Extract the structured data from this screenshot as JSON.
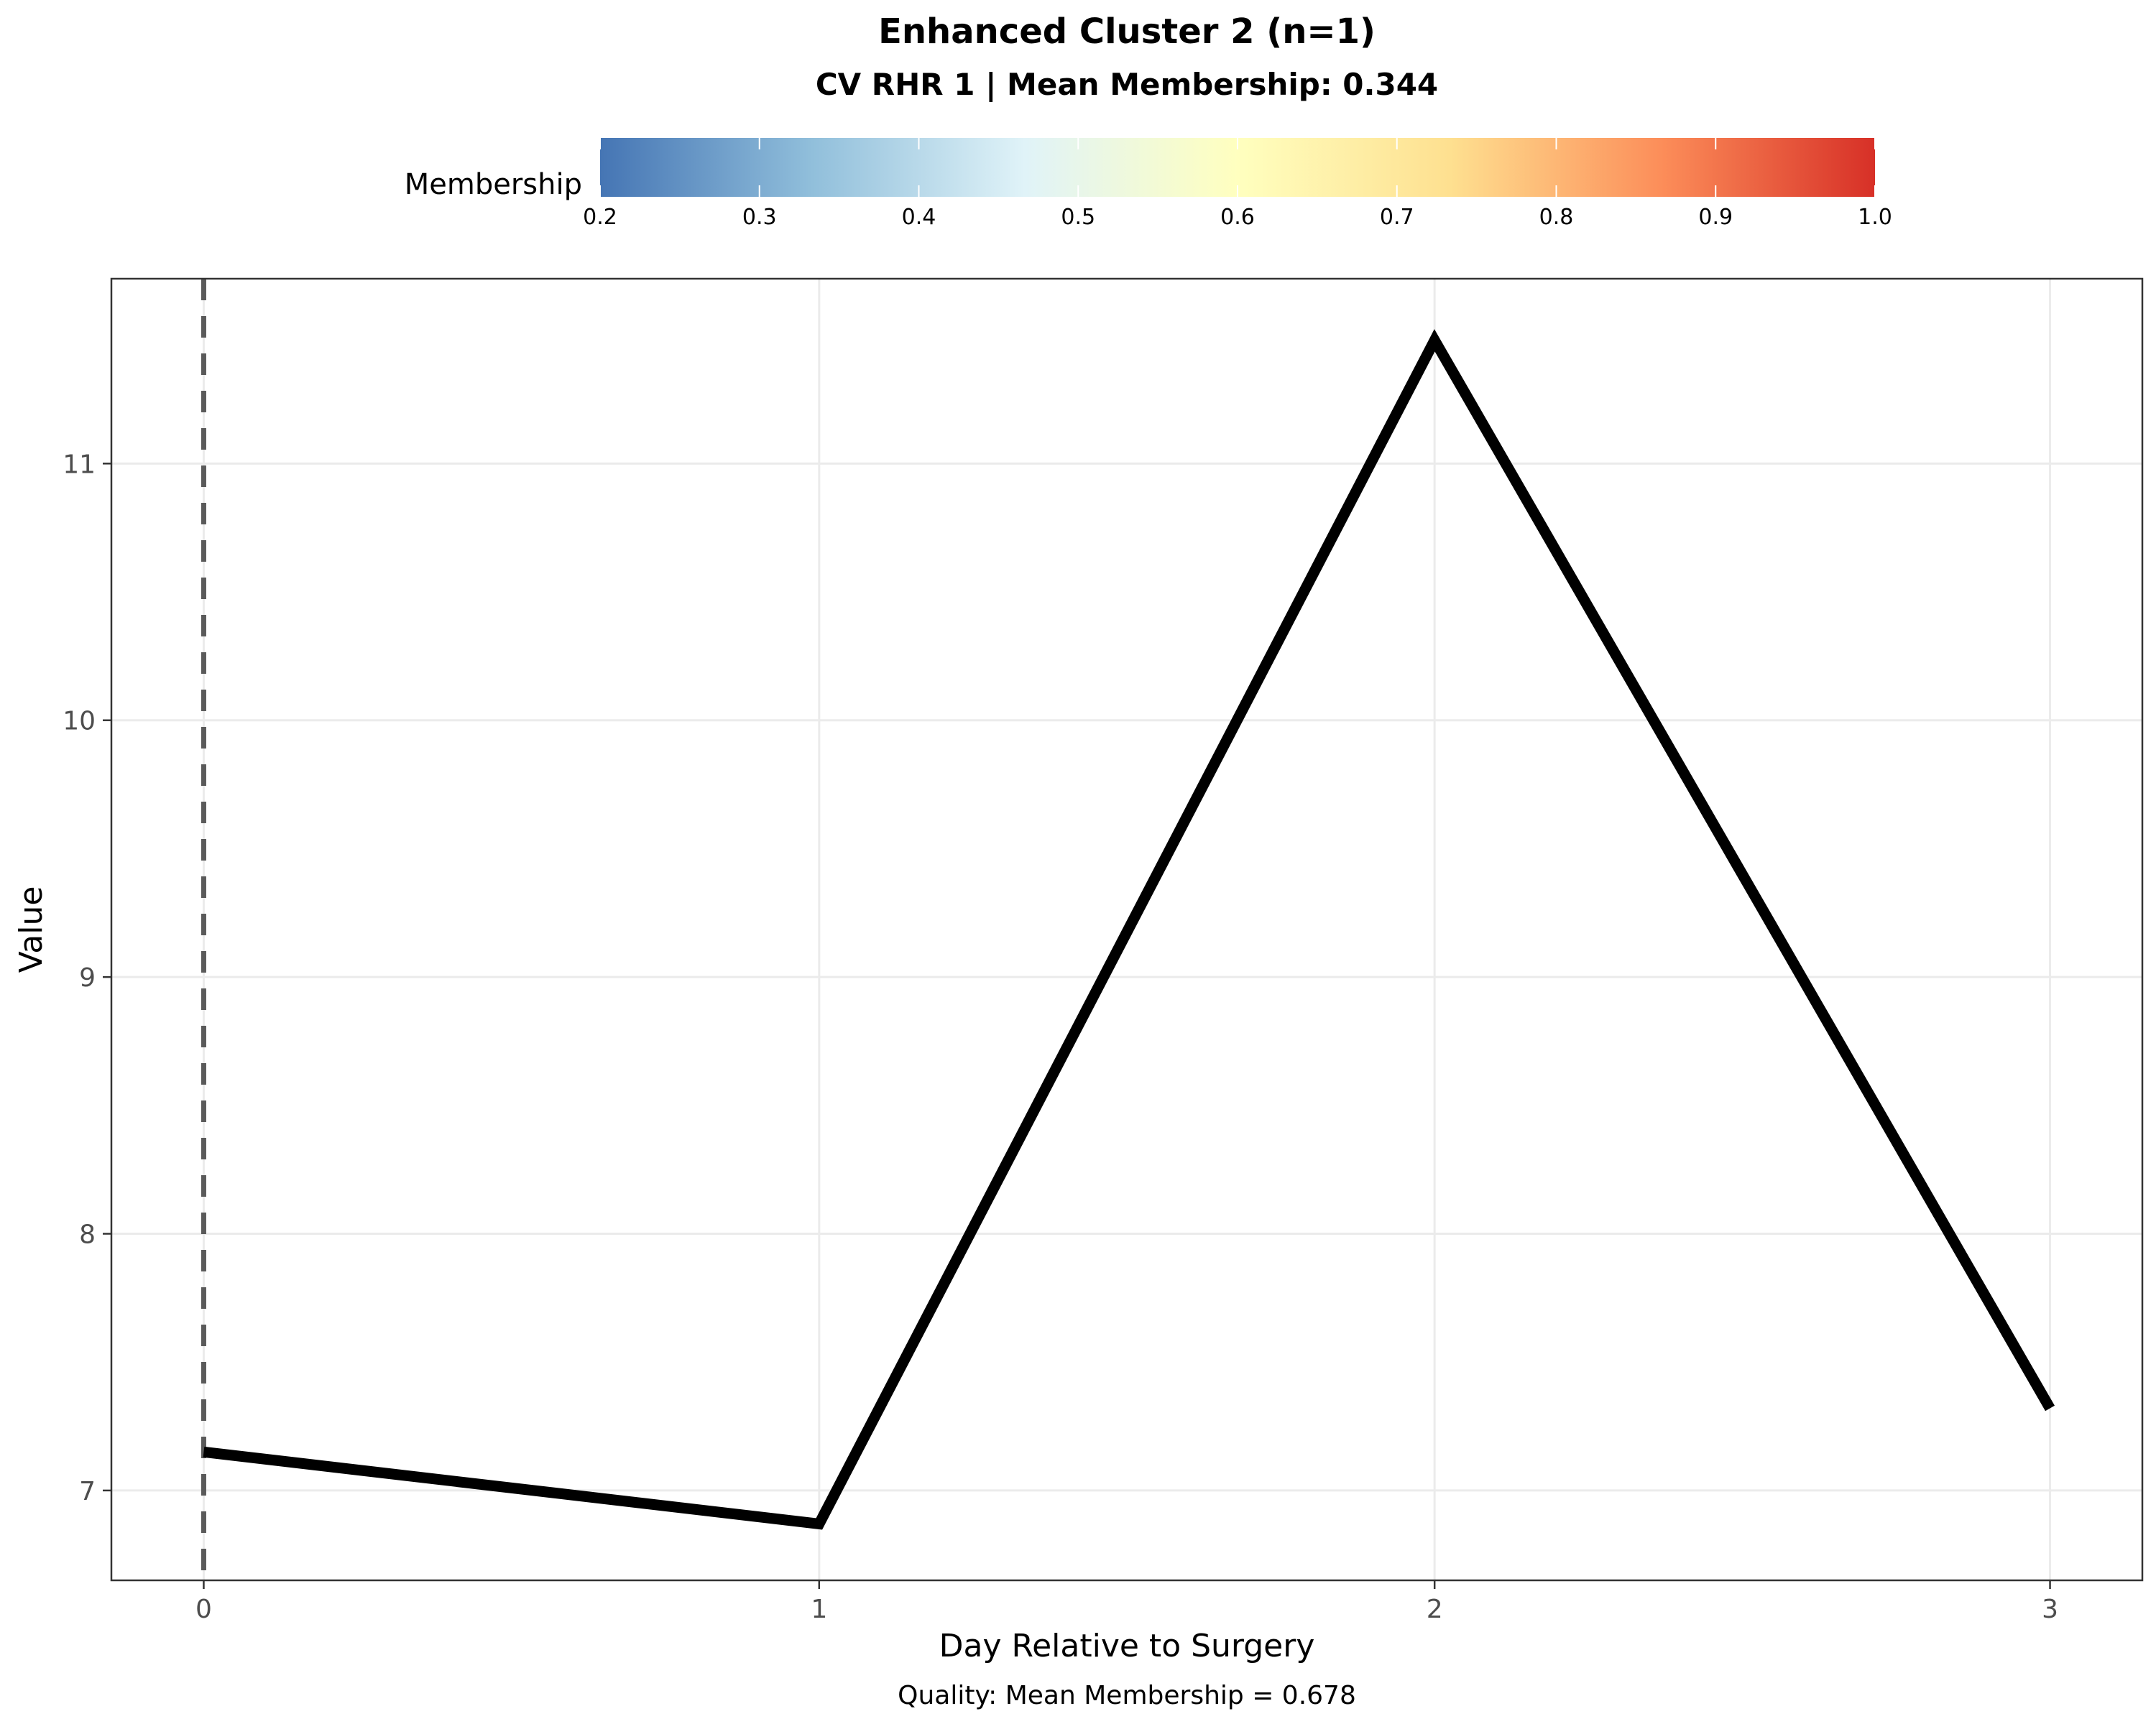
{
  "chart_data": {
    "type": "line",
    "title": "Enhanced Cluster 2 (n=1)",
    "subtitle": "CV RHR 1 | Mean Membership: 0.344",
    "caption": "Quality: Mean Membership = 0.678",
    "xlabel": "Day Relative to Surgery",
    "ylabel": "Value",
    "x": [
      0,
      1,
      2,
      3
    ],
    "series": [
      {
        "values": [
          7.15,
          6.87,
          11.48,
          7.32
        ],
        "color": "#000000"
      }
    ],
    "x_ticks": [
      "0",
      "1",
      "2",
      "3"
    ],
    "y_ticks": [
      "7",
      "8",
      "9",
      "10",
      "11"
    ],
    "xlim": [
      -0.15,
      3.15
    ],
    "ylim": [
      6.65,
      11.72
    ],
    "grid": true,
    "reference_line": {
      "x": 0,
      "style": "dashed",
      "color": "#5a5a5a"
    },
    "colorbar": {
      "title": "Membership",
      "range": [
        0.2,
        1.0
      ],
      "ticks": [
        "0.2",
        "0.3",
        "0.4",
        "0.5",
        "0.6",
        "0.7",
        "0.8",
        "0.9",
        "1.0"
      ],
      "colors": [
        "#4575b4",
        "#91bfdb",
        "#e0f3f8",
        "#ffffbf",
        "#fee090",
        "#fc8d59",
        "#d73027"
      ],
      "placement": "top"
    }
  }
}
